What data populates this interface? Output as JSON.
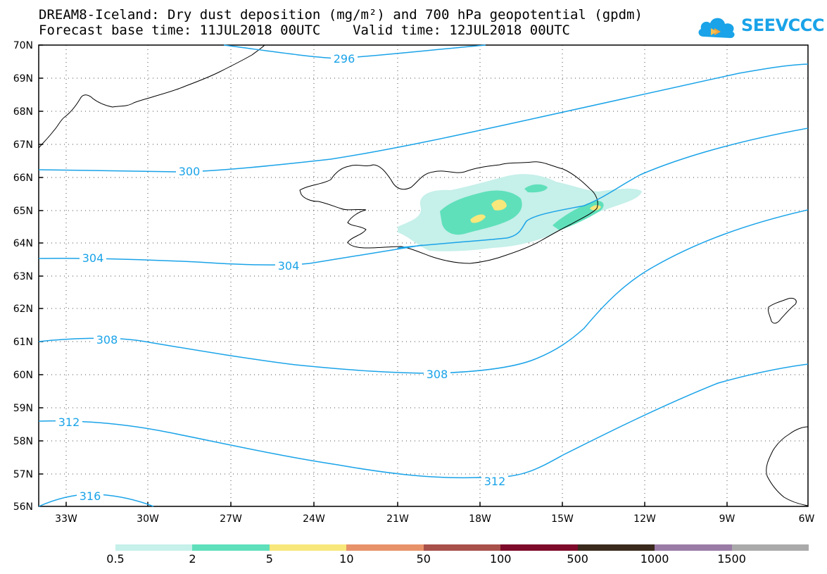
{
  "title": {
    "line1": "DREAM8-Iceland: Dry dust deposition (mg/m²) and 700 hPa geopotential (gpdm)",
    "line2": "Forecast base time: 11JUL2018 00UTC    Valid time: 12JUL2018 00UTC"
  },
  "logo": {
    "text": "SEEVCCC",
    "icon": "cloud-icon",
    "color": "#1aa3e8"
  },
  "map": {
    "lat_labels": [
      "70N",
      "69N",
      "68N",
      "67N",
      "66N",
      "65N",
      "64N",
      "63N",
      "62N",
      "61N",
      "60N",
      "59N",
      "58N",
      "57N",
      "56N"
    ],
    "lon_labels": [
      "33W",
      "30W",
      "27W",
      "24W",
      "21W",
      "18W",
      "15W",
      "12W",
      "9W",
      "6W"
    ],
    "contour_labels": [
      "296",
      "300",
      "304",
      "304",
      "308",
      "308",
      "312",
      "312",
      "316"
    ],
    "contour_color": "#1aa3e8"
  },
  "legend": {
    "colors": [
      "#c6f0ea",
      "#5fe0bb",
      "#f8e77a",
      "#e8926a",
      "#a8504a",
      "#7d0a2a",
      "#3a2a1e",
      "#9a7ba6",
      "#aaaaaa"
    ],
    "labels": [
      "0.5",
      "2",
      "5",
      "10",
      "50",
      "100",
      "500",
      "1000",
      "1500"
    ]
  }
}
